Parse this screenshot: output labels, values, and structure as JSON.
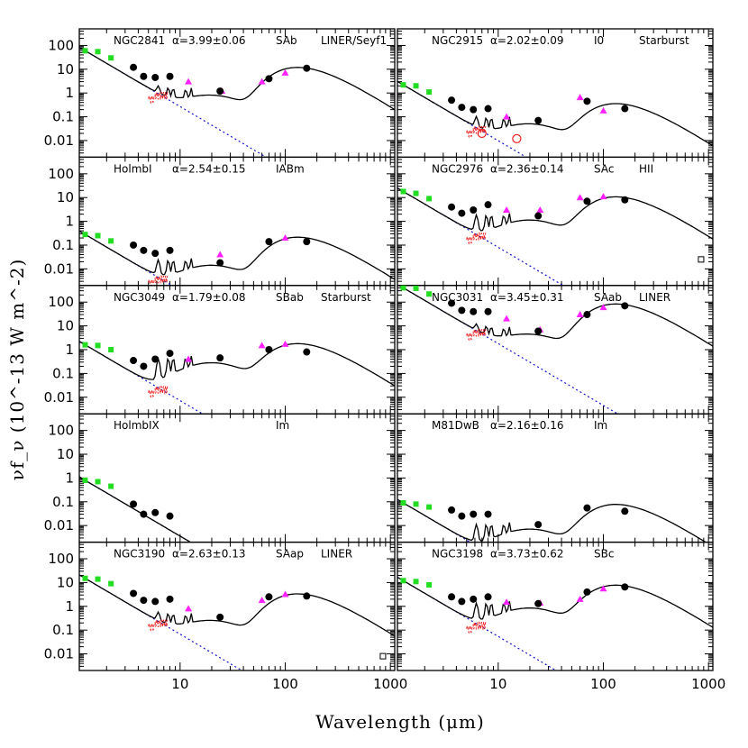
{
  "chart_data": {
    "type": "scatter",
    "layout": {
      "rows": 5,
      "cols": 2
    },
    "xlabel": "Wavelength (μm)",
    "ylabel": "νf_ν (10^-13 W m^-2)",
    "x_scale": "log",
    "y_scale": "log",
    "xlim": [
      1.1,
      1100
    ],
    "ylim": [
      0.002,
      500
    ],
    "x_ticks": [
      10,
      100,
      1000
    ],
    "y_ticks": [
      0.01,
      0.1,
      1,
      10,
      100
    ],
    "y_tick_labels": [
      "0.01",
      "0.1",
      "1",
      "10",
      "100"
    ],
    "colors": {
      "nir": "#22dd22",
      "iras": "#ff22ff",
      "spectrum": "#ee2222",
      "stellar": "#1111cc",
      "model": "#000000",
      "photometry": "#000000"
    },
    "panels": [
      {
        "label": "NGC2841",
        "alpha": "α=3.99±0.06",
        "morph": "SAb",
        "type": "LINER/Seyf1",
        "nir": [
          [
            1.25,
            60
          ],
          [
            1.65,
            55
          ],
          [
            2.2,
            30
          ]
        ],
        "photometry": [
          [
            3.6,
            12
          ],
          [
            4.5,
            5
          ],
          [
            5.8,
            4.5
          ],
          [
            8,
            5
          ],
          [
            24,
            1.2
          ],
          [
            70,
            4
          ],
          [
            160,
            11
          ]
        ],
        "iras": [
          [
            12,
            3
          ],
          [
            25,
            1.2
          ],
          [
            60,
            3
          ],
          [
            100,
            7
          ]
        ],
        "spectrum_ranges": [
          [
            5.2,
            38
          ],
          [
            7.5,
            20
          ]
        ],
        "peak_dust": 10,
        "stellar_norm": 60,
        "dip": 1.1,
        "open": []
      },
      {
        "label": "NGC2915",
        "alpha": "α=2.02±0.09",
        "morph": "I0",
        "type": "Starburst",
        "nir": [
          [
            1.25,
            2.2
          ],
          [
            1.65,
            2
          ],
          [
            2.2,
            1.1
          ]
        ],
        "photometry": [
          [
            3.6,
            0.5
          ],
          [
            4.5,
            0.25
          ],
          [
            5.8,
            0.2
          ],
          [
            8,
            0.22
          ],
          [
            24,
            0.07
          ],
          [
            70,
            0.45
          ],
          [
            160,
            0.22
          ]
        ],
        "iras": [
          [
            12,
            0.1
          ],
          [
            60,
            0.65
          ],
          [
            100,
            0.18
          ]
        ],
        "spectrum_ranges": [
          [
            5.2,
            38
          ],
          [
            7.5,
            20
          ]
        ],
        "peak_dust": 0.3,
        "stellar_norm": 2.2,
        "dip": 0.07,
        "open": [
          [
            7,
            0.02
          ],
          [
            15,
            0.012
          ]
        ]
      },
      {
        "label": "HolmbI",
        "alpha": "α=2.54±0.15",
        "morph": "IABm",
        "type": "",
        "nir": [
          [
            1.25,
            0.28
          ],
          [
            1.65,
            0.25
          ],
          [
            2.2,
            0.15
          ]
        ],
        "photometry": [
          [
            3.6,
            0.1
          ],
          [
            4.5,
            0.06
          ],
          [
            5.8,
            0.045
          ],
          [
            8,
            0.06
          ],
          [
            24,
            0.018
          ],
          [
            70,
            0.14
          ],
          [
            160,
            0.14
          ]
        ],
        "iras": [
          [
            24,
            0.04
          ],
          [
            100,
            0.2
          ]
        ],
        "spectrum_ranges": [
          [
            5.2,
            38
          ],
          [
            7.5,
            20
          ]
        ],
        "peak_dust": 0.18,
        "stellar_norm": 0.28,
        "dip": 0.02,
        "open": []
      },
      {
        "label": "NGC2976",
        "alpha": "α=2.36±0.14",
        "morph": "SAc",
        "type": "HII",
        "nir": [
          [
            1.25,
            18
          ],
          [
            1.65,
            15
          ],
          [
            2.2,
            9
          ]
        ],
        "photometry": [
          [
            3.6,
            4
          ],
          [
            4.5,
            2.2
          ],
          [
            5.8,
            3
          ],
          [
            8,
            5
          ],
          [
            24,
            1.7
          ],
          [
            70,
            7
          ],
          [
            160,
            8
          ]
        ],
        "iras": [
          [
            12,
            3
          ],
          [
            25,
            3
          ],
          [
            60,
            10
          ],
          [
            100,
            11
          ]
        ],
        "spectrum_ranges": [
          [
            5.2,
            38
          ],
          [
            7.5,
            20
          ]
        ],
        "peak_dust": 9,
        "stellar_norm": 18,
        "dip": 1.6,
        "open": [
          [
            850,
            0.025
          ]
        ]
      },
      {
        "label": "NGC3049",
        "alpha": "α=1.79±0.08",
        "morph": "SBab",
        "type": "Starburst",
        "nir": [
          [
            1.25,
            1.6
          ],
          [
            1.65,
            1.5
          ],
          [
            2.2,
            1
          ]
        ],
        "photometry": [
          [
            3.6,
            0.35
          ],
          [
            4.5,
            0.2
          ],
          [
            5.8,
            0.4
          ],
          [
            8,
            0.7
          ],
          [
            24,
            0.45
          ],
          [
            70,
            1
          ],
          [
            160,
            0.8
          ]
        ],
        "iras": [
          [
            12,
            0.4
          ],
          [
            60,
            1.5
          ],
          [
            100,
            1.7
          ]
        ],
        "spectrum_ranges": [
          [
            5.2,
            38
          ],
          [
            7.5,
            20
          ]
        ],
        "peak_dust": 1.5,
        "stellar_norm": 1.6,
        "dip": 0.4,
        "open": []
      },
      {
        "label": "NGC3031",
        "alpha": "α=3.45±0.31",
        "morph": "SAab",
        "type": "LINER",
        "nir": [
          [
            1.25,
            400
          ],
          [
            1.65,
            380
          ],
          [
            2.2,
            220
          ]
        ],
        "photometry": [
          [
            3.6,
            90
          ],
          [
            4.5,
            45
          ],
          [
            5.8,
            40
          ],
          [
            8,
            40
          ],
          [
            24,
            6
          ],
          [
            70,
            30
          ],
          [
            160,
            70
          ]
        ],
        "iras": [
          [
            12,
            20
          ],
          [
            25,
            7
          ],
          [
            60,
            30
          ],
          [
            100,
            60
          ]
        ],
        "spectrum_ranges": [
          [
            5.2,
            38
          ],
          [
            7.5,
            20
          ]
        ],
        "peak_dust": 70,
        "stellar_norm": 400,
        "dip": 6,
        "open": []
      },
      {
        "label": "HolmbIX",
        "alpha": "",
        "morph": "Im",
        "type": "",
        "nir": [
          [
            1.25,
            0.8
          ],
          [
            1.65,
            0.7
          ],
          [
            2.2,
            0.45
          ]
        ],
        "photometry": [
          [
            3.6,
            0.08
          ],
          [
            4.5,
            0.03
          ],
          [
            5.8,
            0.035
          ],
          [
            8,
            0.025
          ]
        ],
        "iras": [],
        "spectrum_ranges": [],
        "peak_dust": 0,
        "stellar_norm": 0.8,
        "dip": 0,
        "open": []
      },
      {
        "label": "M81DwB",
        "alpha": "α=2.16±0.16",
        "morph": "Im",
        "type": "",
        "nir": [
          [
            1.25,
            0.09
          ],
          [
            1.65,
            0.08
          ],
          [
            2.2,
            0.06
          ]
        ],
        "photometry": [
          [
            3.6,
            0.045
          ],
          [
            4.5,
            0.025
          ],
          [
            5.8,
            0.03
          ],
          [
            8,
            0.03
          ],
          [
            24,
            0.011
          ],
          [
            70,
            0.055
          ],
          [
            160,
            0.04
          ]
        ],
        "iras": [],
        "spectrum_ranges": [
          [
            5.2,
            38
          ],
          [
            7.5,
            20
          ]
        ],
        "peak_dust": 0.065,
        "stellar_norm": 0.09,
        "dip": 0.01,
        "open": []
      },
      {
        "label": "NGC3190",
        "alpha": "α=2.63±0.13",
        "morph": "SAap",
        "type": "LINER",
        "nir": [
          [
            1.25,
            15
          ],
          [
            1.65,
            14
          ],
          [
            2.2,
            9
          ]
        ],
        "photometry": [
          [
            3.6,
            3.5
          ],
          [
            4.5,
            1.8
          ],
          [
            5.8,
            1.6
          ],
          [
            8,
            2
          ],
          [
            24,
            0.35
          ],
          [
            70,
            2.5
          ],
          [
            160,
            2.7
          ]
        ],
        "iras": [
          [
            12,
            0.8
          ],
          [
            60,
            1.8
          ],
          [
            100,
            3.2
          ]
        ],
        "spectrum_ranges": [
          [
            5.2,
            38
          ],
          [
            7.5,
            20
          ]
        ],
        "peak_dust": 2.8,
        "stellar_norm": 15,
        "dip": 0.35,
        "open": [
          [
            850,
            0.008
          ]
        ]
      },
      {
        "label": "NGC3198",
        "alpha": "α=3.73±0.62",
        "morph": "SBc",
        "type": "",
        "nir": [
          [
            1.25,
            12
          ],
          [
            1.65,
            11
          ],
          [
            2.2,
            8
          ]
        ],
        "photometry": [
          [
            3.6,
            2.5
          ],
          [
            4.5,
            1.6
          ],
          [
            5.8,
            2
          ],
          [
            8,
            2.5
          ],
          [
            24,
            1.3
          ],
          [
            70,
            4
          ],
          [
            160,
            6.5
          ]
        ],
        "iras": [
          [
            12,
            1.5
          ],
          [
            25,
            1.4
          ],
          [
            60,
            2
          ],
          [
            100,
            5.5
          ]
        ],
        "spectrum_ranges": [
          [
            5.2,
            38
          ],
          [
            7.5,
            20
          ]
        ],
        "peak_dust": 6.5,
        "stellar_norm": 12,
        "dip": 1.2,
        "open": []
      }
    ]
  }
}
